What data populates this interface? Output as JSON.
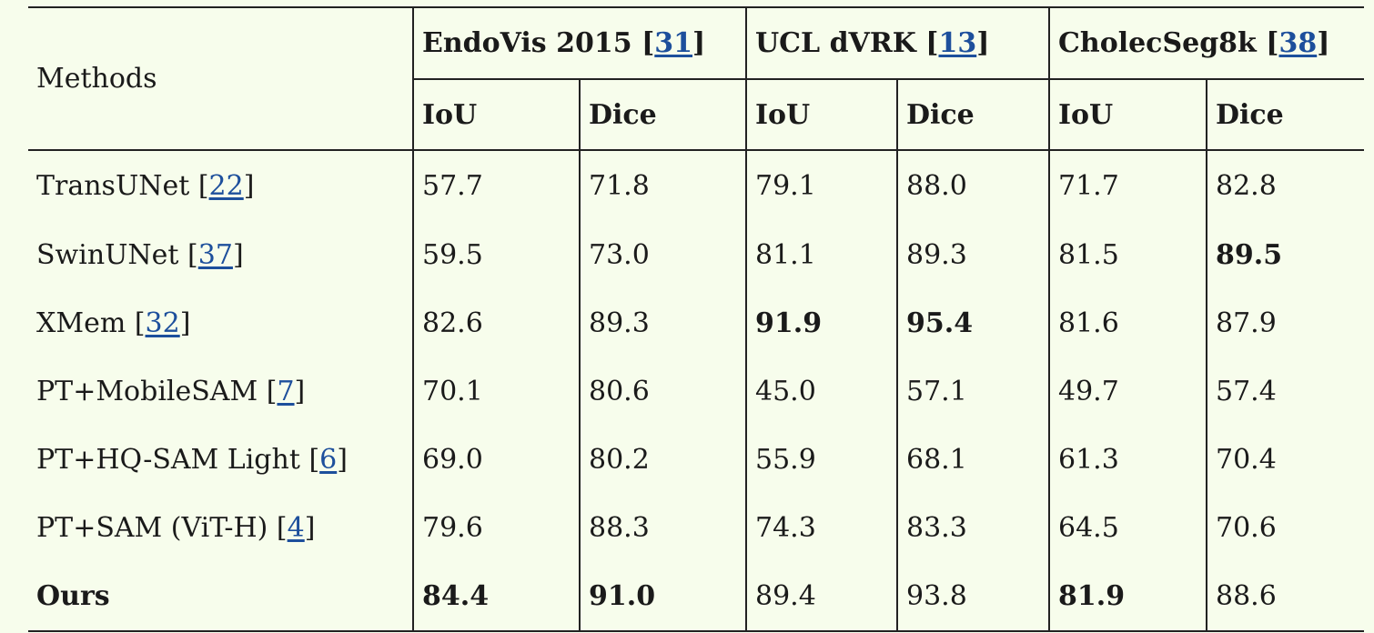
{
  "table": {
    "methods_header": "Methods",
    "datasets": [
      {
        "name": "EndoVis 2015",
        "ref": "31"
      },
      {
        "name": "UCL dVRK",
        "ref": "13"
      },
      {
        "name": "CholecSeg8k",
        "ref": "38"
      }
    ],
    "metrics": [
      "IoU",
      "Dice",
      "IoU",
      "Dice",
      "IoU",
      "Dice"
    ],
    "rows": [
      {
        "method": "TransUNet",
        "ref": "22",
        "values": [
          "57.7",
          "71.8",
          "79.1",
          "88.0",
          "71.7",
          "82.8"
        ],
        "bold": [
          false,
          false,
          false,
          false,
          false,
          false
        ],
        "method_bold": false
      },
      {
        "method": "SwinUNet",
        "ref": "37",
        "values": [
          "59.5",
          "73.0",
          "81.1",
          "89.3",
          "81.5",
          "89.5"
        ],
        "bold": [
          false,
          false,
          false,
          false,
          false,
          true
        ],
        "method_bold": false
      },
      {
        "method": "XMem",
        "ref": "32",
        "values": [
          "82.6",
          "89.3",
          "91.9",
          "95.4",
          "81.6",
          "87.9"
        ],
        "bold": [
          false,
          false,
          true,
          true,
          false,
          false
        ],
        "method_bold": false
      },
      {
        "method": "PT+MobileSAM",
        "ref": "7",
        "values": [
          "70.1",
          "80.6",
          "45.0",
          "57.1",
          "49.7",
          "57.4"
        ],
        "bold": [
          false,
          false,
          false,
          false,
          false,
          false
        ],
        "method_bold": false
      },
      {
        "method": "PT+HQ-SAM Light",
        "ref": "6",
        "values": [
          "69.0",
          "80.2",
          "55.9",
          "68.1",
          "61.3",
          "70.4"
        ],
        "bold": [
          false,
          false,
          false,
          false,
          false,
          false
        ],
        "method_bold": false
      },
      {
        "method": "PT+SAM (ViT-H)",
        "ref": "4",
        "values": [
          "79.6",
          "88.3",
          "74.3",
          "83.3",
          "64.5",
          "70.6"
        ],
        "bold": [
          false,
          false,
          false,
          false,
          false,
          false
        ],
        "method_bold": false
      },
      {
        "method": "Ours",
        "ref": "",
        "values": [
          "84.4",
          "91.0",
          "89.4",
          "93.8",
          "81.9",
          "88.6"
        ],
        "bold": [
          true,
          true,
          false,
          false,
          true,
          false
        ],
        "method_bold": true
      }
    ]
  },
  "colors": {
    "background": "#f7fdec",
    "link": "#1d4f9c",
    "text": "#1a1a1a",
    "rule": "#222222"
  }
}
